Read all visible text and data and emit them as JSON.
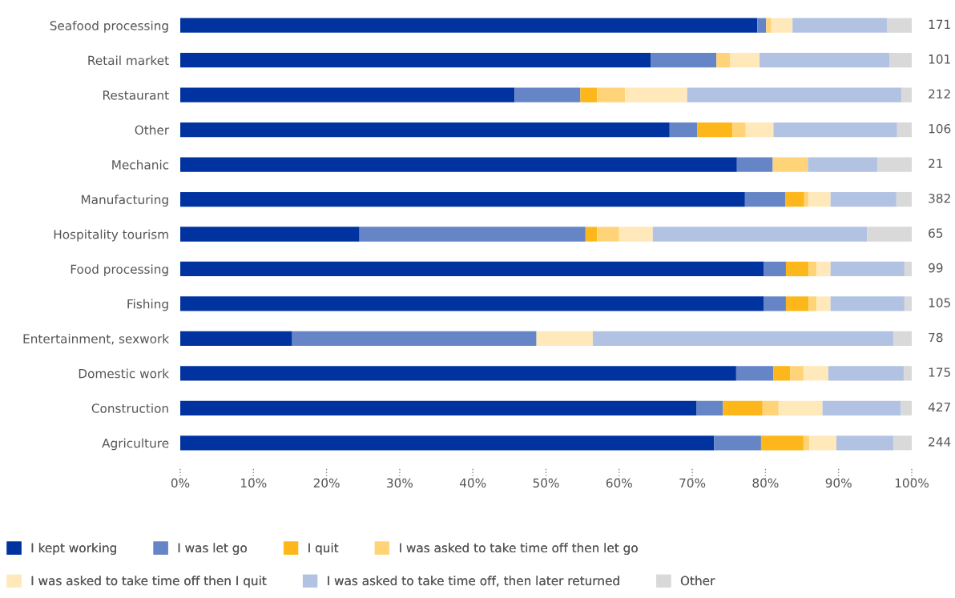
{
  "chart_data": {
    "type": "bar",
    "orientation": "horizontal",
    "stacked": true,
    "categories": [
      "Seafood processing",
      "Retail market",
      "Restaurant",
      "Other",
      "Mechanic",
      "Manufacturing",
      "Hospitality tourism",
      "Food processing",
      "Fishing",
      "Entertainment, sexwork",
      "Domestic work",
      "Construction",
      "Agriculture"
    ],
    "series": [
      {
        "name": "I kept working",
        "color": "#0033a0",
        "values": [
          78.9,
          64.3,
          45.7,
          66.9,
          76.1,
          77.2,
          24.5,
          79.8,
          79.8,
          15.3,
          76.0,
          70.6,
          73.0
        ]
      },
      {
        "name": "I was let go",
        "color": "#6685c6",
        "values": [
          1.2,
          9.0,
          9.0,
          3.8,
          4.9,
          5.5,
          30.9,
          3.0,
          3.0,
          33.4,
          5.1,
          3.6,
          6.4
        ]
      },
      {
        "name": "I quit",
        "color": "#fdb71a",
        "values": [
          0,
          0,
          2.3,
          4.8,
          0,
          2.6,
          1.6,
          3.1,
          3.1,
          0,
          2.3,
          5.4,
          5.8
        ]
      },
      {
        "name": "I was asked to take time off then let go",
        "color": "#ffd478",
        "values": [
          0.7,
          1.9,
          3.8,
          1.8,
          4.8,
          0.6,
          3.0,
          1.1,
          1.1,
          0,
          1.8,
          2.2,
          0.8
        ]
      },
      {
        "name": "I was asked to take time off then I quit",
        "color": "#ffe9bb",
        "values": [
          2.9,
          4.0,
          8.5,
          3.8,
          0,
          3.0,
          4.6,
          1.9,
          1.9,
          7.7,
          3.4,
          6.0,
          3.7
        ]
      },
      {
        "name": "I was asked to take time off, then later returned",
        "color": "#b2c2e3",
        "values": [
          12.9,
          17.8,
          29.3,
          16.9,
          9.5,
          9.0,
          29.3,
          10.1,
          10.1,
          41.1,
          10.3,
          10.7,
          7.8
        ]
      },
      {
        "name": "Other",
        "color": "#d9d9d9",
        "values": [
          3.4,
          3.0,
          1.4,
          2.0,
          4.7,
          2.1,
          6.1,
          1.0,
          1.0,
          2.5,
          1.1,
          1.5,
          2.5
        ]
      }
    ],
    "annotations": [
      "171",
      "101",
      "212",
      "106",
      "21",
      "382",
      "65",
      "99",
      "105",
      "78",
      "175",
      "427",
      "244"
    ],
    "xlim": [
      0,
      100
    ],
    "xticks": [
      {
        "value": 0,
        "label": "0%"
      },
      {
        "value": 10,
        "label": "10%"
      },
      {
        "value": 20,
        "label": "20%"
      },
      {
        "value": 30,
        "label": "30%"
      },
      {
        "value": 40,
        "label": "40%"
      },
      {
        "value": 50,
        "label": "50%"
      },
      {
        "value": 60,
        "label": "60%"
      },
      {
        "value": 70,
        "label": "70%"
      },
      {
        "value": 80,
        "label": "80%"
      },
      {
        "value": 90,
        "label": "90%"
      },
      {
        "value": 100,
        "label": "100%"
      }
    ],
    "grid": false,
    "legend": "bottom"
  }
}
